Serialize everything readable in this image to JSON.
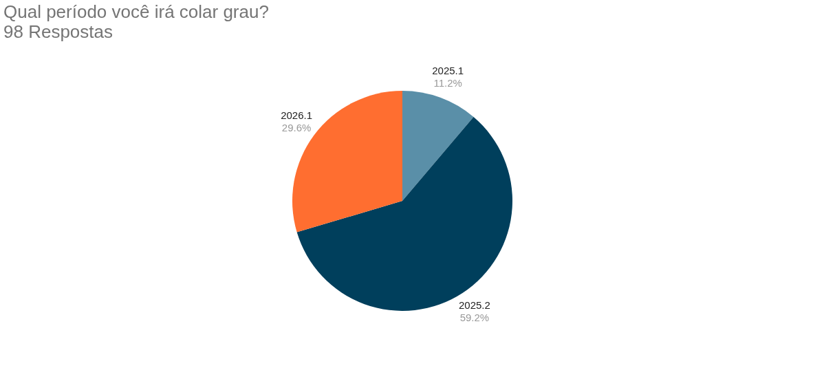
{
  "chart_data": {
    "type": "pie",
    "title": "Qual período você irá colar grau?",
    "subtitle": "98 Respostas",
    "categories": [
      "2025.1",
      "2025.2",
      "2026.1"
    ],
    "values": [
      11.2,
      59.2,
      29.6
    ],
    "colors": [
      "#5a8fa8",
      "#003f5c",
      "#ff6e30"
    ],
    "value_labels": [
      "11.2%",
      "59.2%",
      "29.6%"
    ]
  }
}
